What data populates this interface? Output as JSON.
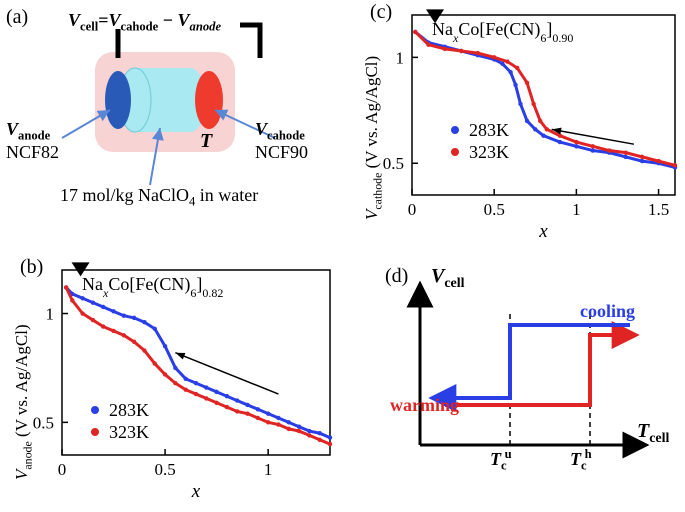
{
  "panel_a": {
    "label": "(a)",
    "equation_parts": {
      "v": "V",
      "cell": "cell",
      "eq": "=",
      "cahode": "cahode",
      "minus": " − ",
      "anode": "anode"
    },
    "anode_label_v": "V",
    "anode_label_sub": "anode",
    "anode_name": "NCF82",
    "cathode_label_v": "V",
    "cathode_label_sub": "cahode",
    "cathode_name": "NCF90",
    "temperature_sym": "T",
    "electrolyte": "17 mol/kg NaClO",
    "electrolyte_sub": "4",
    "electrolyte_tail": " in water",
    "body_color": "#f8d3d3",
    "anode_color": "#2a5ab8",
    "cathode_color": "#ef3a2e",
    "cell_color": "#a9e9f2",
    "arrow_color": "#5a86d6"
  },
  "panel_b": {
    "label": "(b)",
    "compound_prefix": "Na",
    "compound_xsub": "x",
    "compound_mid": "Co[Fe(CN)",
    "compound_cn_sub": "6",
    "compound_end": "]",
    "compound_tail_sub": "0.82",
    "ylabel_v": "V",
    "ylabel_sub": "anode",
    "ylabel_tail": " (V vs. Ag/AgCl)",
    "xlabel": "x",
    "legend": [
      {
        "label": "283K",
        "color": "#2a3ee6"
      },
      {
        "label": "323K",
        "color": "#e02424"
      }
    ],
    "xlim": [
      0,
      1.3
    ],
    "ylim": [
      0.35,
      1.2
    ],
    "yticks": [
      {
        "pos": 0.5,
        "label": "0.5"
      },
      {
        "pos": 1.0,
        "label": "1"
      }
    ],
    "xticks": [
      {
        "pos": 0,
        "label": "0"
      },
      {
        "pos": 0.5,
        "label": "0.5"
      },
      {
        "pos": 1.0,
        "label": "1"
      }
    ],
    "series": {
      "283K": [
        [
          0.02,
          1.12
        ],
        [
          0.05,
          1.09
        ],
        [
          0.1,
          1.07
        ],
        [
          0.15,
          1.05
        ],
        [
          0.2,
          1.03
        ],
        [
          0.25,
          1.01
        ],
        [
          0.3,
          0.99
        ],
        [
          0.35,
          0.98
        ],
        [
          0.4,
          0.96
        ],
        [
          0.45,
          0.93
        ],
        [
          0.5,
          0.85
        ],
        [
          0.55,
          0.75
        ],
        [
          0.6,
          0.7
        ],
        [
          0.65,
          0.68
        ],
        [
          0.7,
          0.66
        ],
        [
          0.75,
          0.64
        ],
        [
          0.8,
          0.62
        ],
        [
          0.85,
          0.6
        ],
        [
          0.9,
          0.58
        ],
        [
          0.95,
          0.56
        ],
        [
          1.0,
          0.54
        ],
        [
          1.05,
          0.52
        ],
        [
          1.1,
          0.5
        ],
        [
          1.15,
          0.48
        ],
        [
          1.2,
          0.46
        ],
        [
          1.25,
          0.45
        ],
        [
          1.3,
          0.43
        ]
      ],
      "323K": [
        [
          0.02,
          1.12
        ],
        [
          0.05,
          1.06
        ],
        [
          0.1,
          1.0
        ],
        [
          0.15,
          0.97
        ],
        [
          0.2,
          0.94
        ],
        [
          0.25,
          0.92
        ],
        [
          0.3,
          0.9
        ],
        [
          0.35,
          0.87
        ],
        [
          0.4,
          0.83
        ],
        [
          0.45,
          0.77
        ],
        [
          0.5,
          0.72
        ],
        [
          0.55,
          0.68
        ],
        [
          0.6,
          0.65
        ],
        [
          0.65,
          0.63
        ],
        [
          0.7,
          0.61
        ],
        [
          0.75,
          0.59
        ],
        [
          0.8,
          0.57
        ],
        [
          0.85,
          0.55
        ],
        [
          0.9,
          0.54
        ],
        [
          0.95,
          0.52
        ],
        [
          1.0,
          0.5
        ],
        [
          1.05,
          0.49
        ],
        [
          1.1,
          0.47
        ],
        [
          1.15,
          0.46
        ],
        [
          1.2,
          0.44
        ],
        [
          1.25,
          0.42
        ],
        [
          1.3,
          0.4
        ]
      ]
    },
    "marker_pos": [
      0.09,
      1.18
    ],
    "arrow": {
      "from": [
        1.05,
        0.63
      ],
      "to": [
        0.55,
        0.82
      ]
    },
    "plot_bg": "#ffffff",
    "tick_fontsize": 17,
    "line_width": 3
  },
  "panel_c": {
    "label": "(c)",
    "compound_prefix": "Na",
    "compound_xsub": "x",
    "compound_mid": "Co[Fe(CN)",
    "compound_cn_sub": "6",
    "compound_end": "]",
    "compound_tail_sub": "0.90",
    "ylabel_v": "V",
    "ylabel_sub": "cathode",
    "ylabel_tail": " (V vs. Ag/AgCl)",
    "xlabel": "x",
    "legend": [
      {
        "label": "283K",
        "color": "#2a3ee6"
      },
      {
        "label": "323K",
        "color": "#e02424"
      }
    ],
    "xlim": [
      0,
      1.6
    ],
    "ylim": [
      0.35,
      1.2
    ],
    "yticks": [
      {
        "pos": 0.5,
        "label": "0.5"
      },
      {
        "pos": 1.0,
        "label": "1"
      }
    ],
    "xticks": [
      {
        "pos": 0,
        "label": "0"
      },
      {
        "pos": 0.5,
        "label": "0.5"
      },
      {
        "pos": 1.0,
        "label": "1"
      },
      {
        "pos": 1.5,
        "label": "1.5"
      }
    ],
    "series": {
      "283K": [
        [
          0.02,
          1.12
        ],
        [
          0.1,
          1.07
        ],
        [
          0.2,
          1.05
        ],
        [
          0.3,
          1.03
        ],
        [
          0.4,
          1.01
        ],
        [
          0.5,
          0.99
        ],
        [
          0.55,
          0.97
        ],
        [
          0.6,
          0.93
        ],
        [
          0.63,
          0.87
        ],
        [
          0.66,
          0.78
        ],
        [
          0.7,
          0.7
        ],
        [
          0.75,
          0.66
        ],
        [
          0.8,
          0.63
        ],
        [
          0.9,
          0.6
        ],
        [
          1.0,
          0.58
        ],
        [
          1.1,
          0.56
        ],
        [
          1.2,
          0.55
        ],
        [
          1.3,
          0.53
        ],
        [
          1.4,
          0.51
        ],
        [
          1.5,
          0.5
        ],
        [
          1.6,
          0.48
        ]
      ],
      "323K": [
        [
          0.02,
          1.12
        ],
        [
          0.1,
          1.06
        ],
        [
          0.2,
          1.04
        ],
        [
          0.3,
          1.03
        ],
        [
          0.4,
          1.02
        ],
        [
          0.5,
          1.0
        ],
        [
          0.58,
          0.98
        ],
        [
          0.64,
          0.95
        ],
        [
          0.7,
          0.88
        ],
        [
          0.74,
          0.78
        ],
        [
          0.78,
          0.7
        ],
        [
          0.82,
          0.66
        ],
        [
          0.9,
          0.63
        ],
        [
          1.0,
          0.6
        ],
        [
          1.1,
          0.58
        ],
        [
          1.2,
          0.56
        ],
        [
          1.3,
          0.55
        ],
        [
          1.4,
          0.53
        ],
        [
          1.5,
          0.51
        ],
        [
          1.6,
          0.49
        ]
      ]
    },
    "marker_pos": [
      0.14,
      1.17
    ],
    "arrow": {
      "from": [
        1.35,
        0.59
      ],
      "to": [
        0.85,
        0.66
      ]
    },
    "plot_bg": "#ffffff",
    "tick_fontsize": 17,
    "line_width": 3
  },
  "panel_d": {
    "label": "(d)",
    "ylabel_v": "V",
    "ylabel_sub": "cell",
    "xlabel_t": "T",
    "xlabel_sub": "cell",
    "cooling_label": "cooling",
    "warming_label": "warming",
    "tcu_t": "T",
    "tcu_c": "c",
    "tcu_sup": "u",
    "tch_t": "T",
    "tch_c": "c",
    "tch_sup": "h",
    "warming_color": "#e02424",
    "cooling_color": "#2a3ee6",
    "axis_color": "#000000",
    "hyst": {
      "low_y": 40,
      "high_y": 115,
      "tcu_x": 90,
      "tch_x": 170,
      "xmax": 215,
      "cooling_top_y": 120,
      "warming_top_y": 110,
      "left_x": 25
    },
    "line_width": 4
  }
}
